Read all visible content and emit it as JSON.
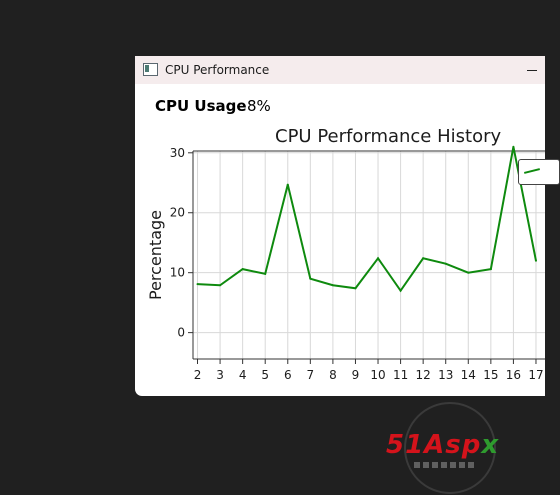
{
  "window": {
    "title": "CPU Performance"
  },
  "usage": {
    "label": "CPU Usage",
    "value": "8%"
  },
  "chart_data": {
    "type": "line",
    "title": "CPU Performance History",
    "ylabel": "Percentage",
    "xlabel": "",
    "x": [
      2,
      3,
      4,
      5,
      6,
      7,
      8,
      9,
      10,
      11,
      12,
      13,
      14,
      15,
      16,
      17
    ],
    "series": [
      {
        "values": [
          8.1,
          7.9,
          10.6,
          9.8,
          24.7,
          9.0,
          7.9,
          7.4,
          12.4,
          7.0,
          12.4,
          11.5,
          10.0,
          10.6,
          31.0,
          12.0
        ]
      }
    ],
    "ylim": [
      -4.4,
      30.3
    ],
    "xlim": [
      1.8,
      17.4
    ],
    "yticks": [
      0,
      10,
      20,
      30
    ],
    "xticks": [
      2,
      3,
      4,
      5,
      6,
      7,
      8,
      9,
      10,
      11,
      12,
      13,
      14,
      15,
      16,
      17
    ],
    "grid": true,
    "legend": "top-right",
    "line_color": "#0e8a0e"
  },
  "watermark": {
    "text_main": "51Asp",
    "text_accent": "x"
  }
}
